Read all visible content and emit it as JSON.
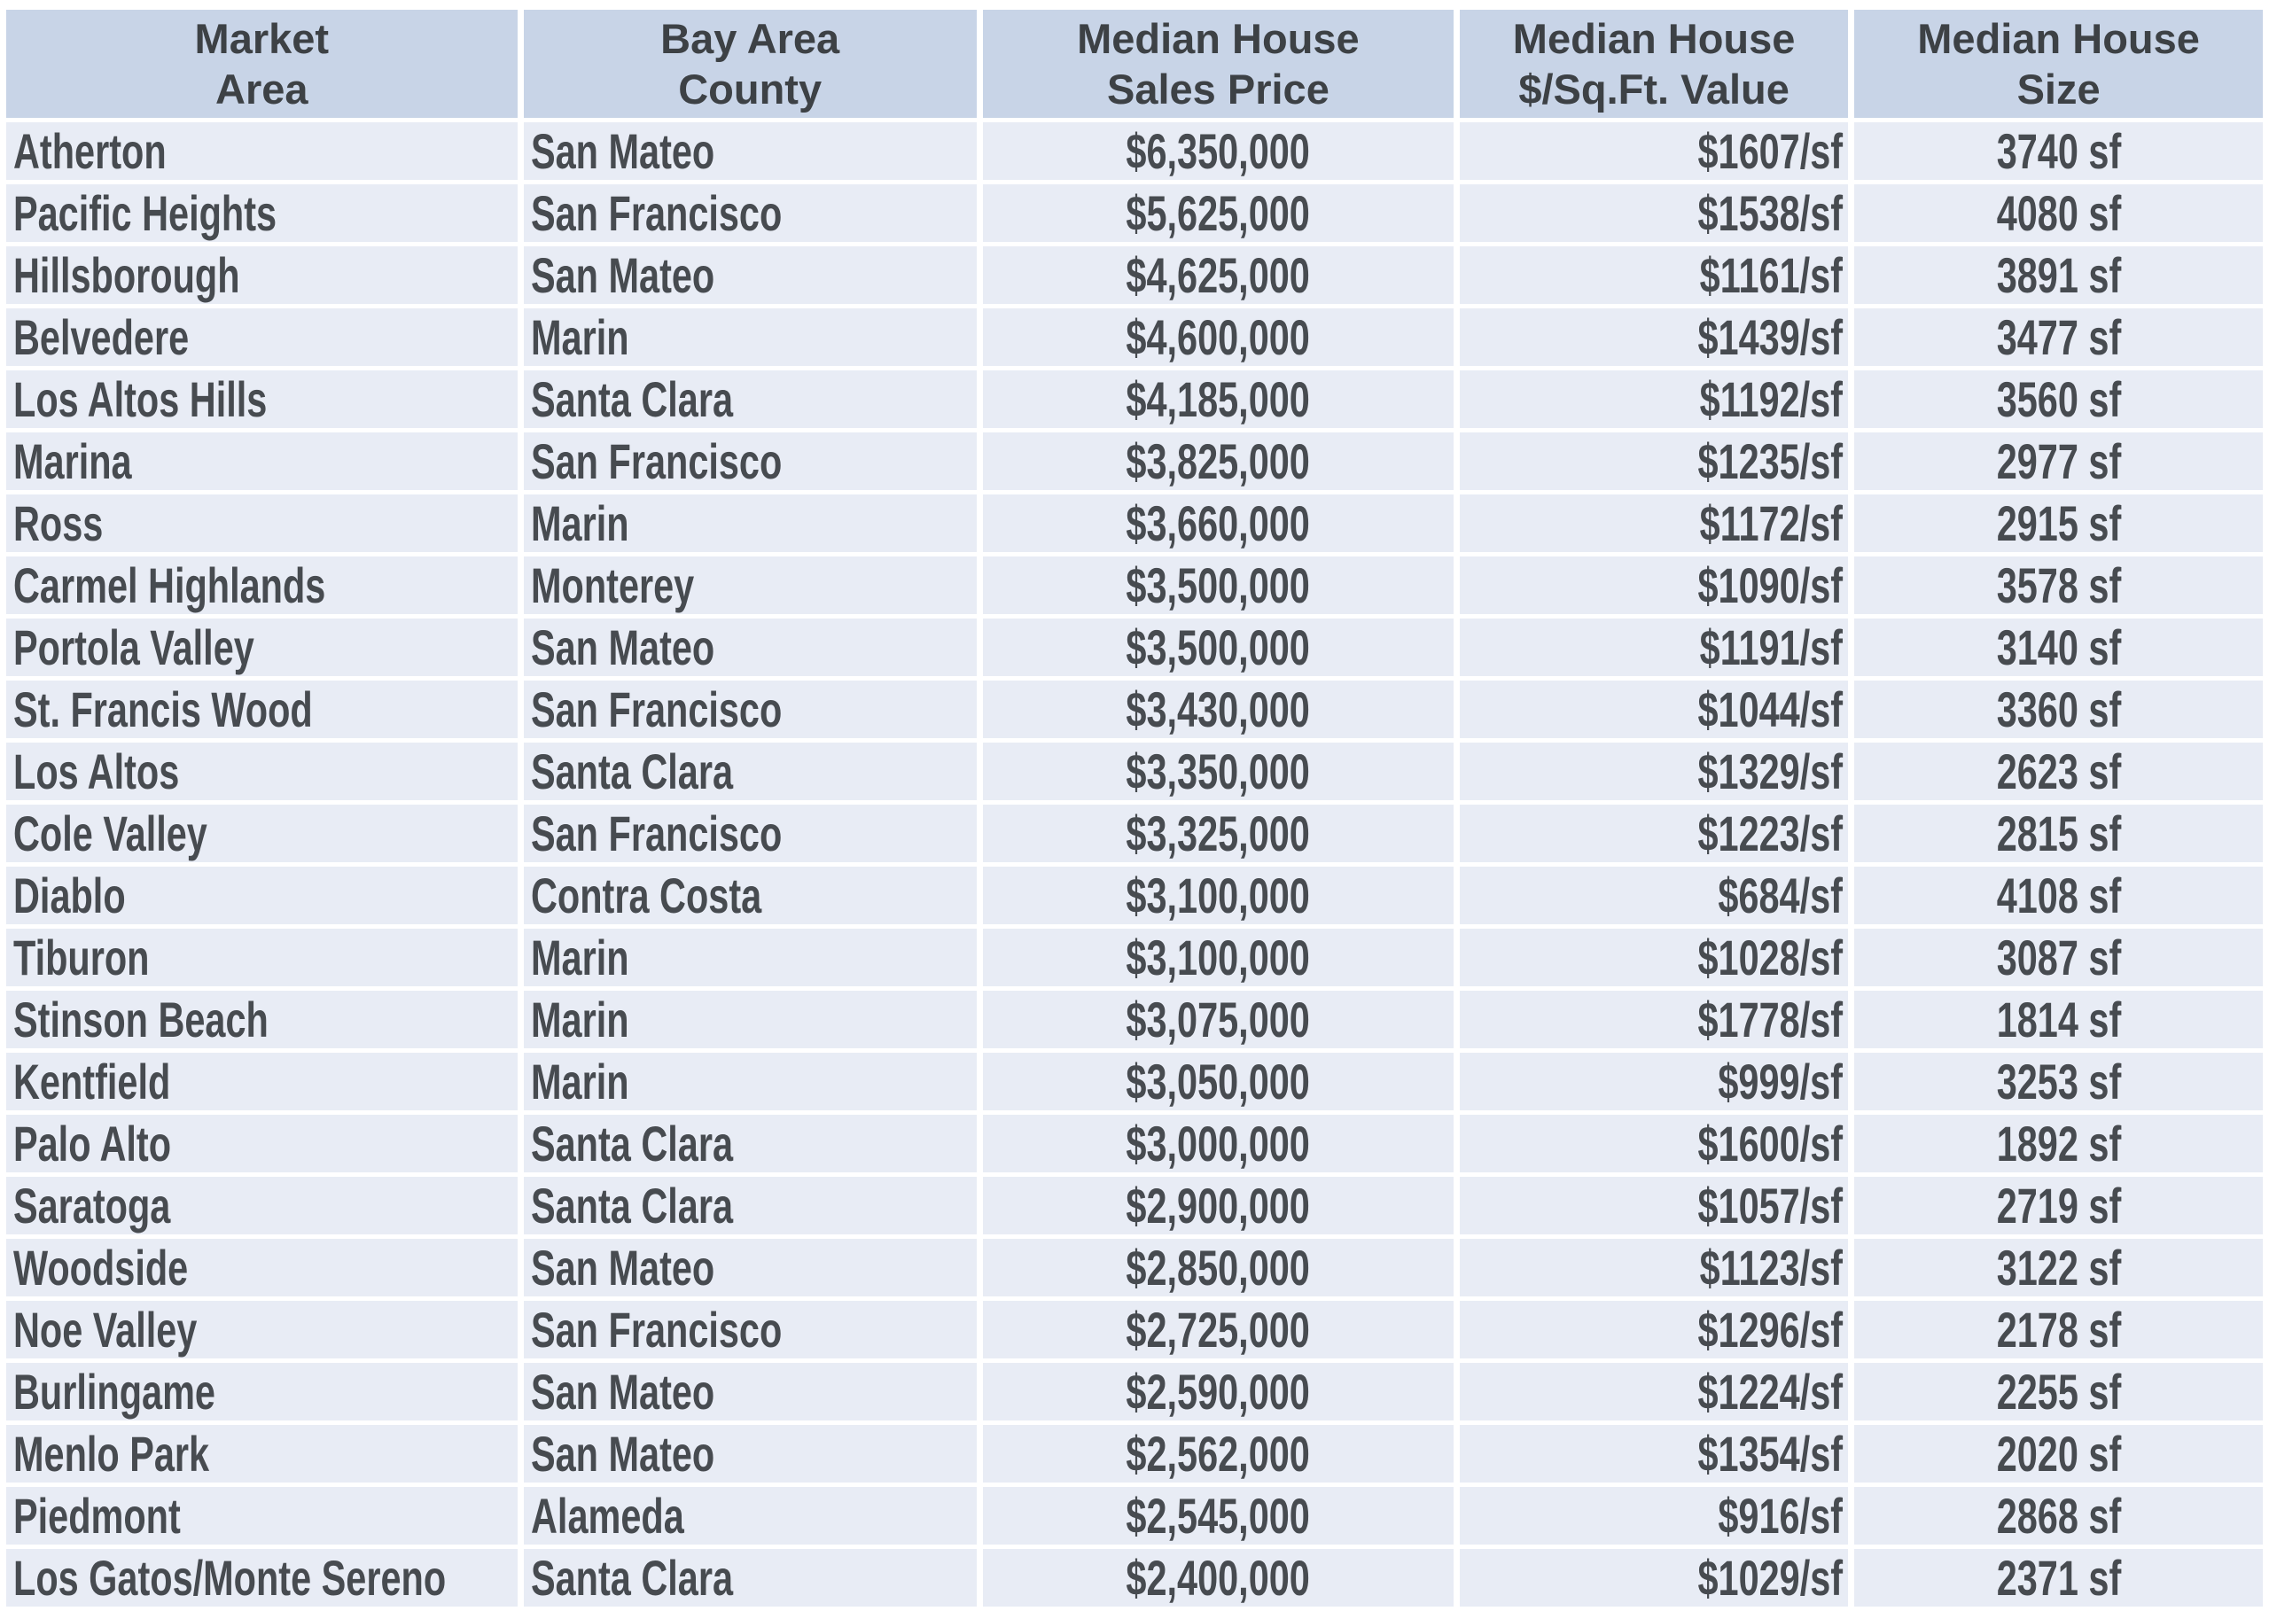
{
  "style": {
    "header_bg": "#c8d4e7",
    "row_bg": "#e8ecf5",
    "grid_color": "#ffffff",
    "header_text_color": "#3d4145",
    "body_text_color": "#474b50"
  },
  "chart_data": {
    "type": "table",
    "title": "",
    "legend_position": "none",
    "grid": "white separators between all cells",
    "columns": [
      {
        "id": "area",
        "line1": "Market",
        "line2": "Area",
        "align": "left"
      },
      {
        "id": "county",
        "line1": "Bay Area",
        "line2": "County",
        "align": "left"
      },
      {
        "id": "price",
        "line1": "Median House",
        "line2": "Sales Price",
        "align": "center"
      },
      {
        "id": "ppsf",
        "line1": "Median House",
        "line2": "$/Sq.Ft. Value",
        "align": "right"
      },
      {
        "id": "size",
        "line1": "Median House",
        "line2": "Size",
        "align": "center"
      }
    ],
    "rows": [
      {
        "area": "Atherton",
        "county": "San Mateo",
        "price": "$6,350,000",
        "ppsf": "$1607/sf",
        "size": "3740 sf"
      },
      {
        "area": "Pacific Heights",
        "county": "San Francisco",
        "price": "$5,625,000",
        "ppsf": "$1538/sf",
        "size": "4080 sf"
      },
      {
        "area": "Hillsborough",
        "county": "San Mateo",
        "price": "$4,625,000",
        "ppsf": "$1161/sf",
        "size": "3891 sf"
      },
      {
        "area": "Belvedere",
        "county": "Marin",
        "price": "$4,600,000",
        "ppsf": "$1439/sf",
        "size": "3477 sf"
      },
      {
        "area": "Los Altos Hills",
        "county": "Santa Clara",
        "price": "$4,185,000",
        "ppsf": "$1192/sf",
        "size": "3560 sf"
      },
      {
        "area": "Marina",
        "county": "San Francisco",
        "price": "$3,825,000",
        "ppsf": "$1235/sf",
        "size": "2977 sf"
      },
      {
        "area": "Ross",
        "county": "Marin",
        "price": "$3,660,000",
        "ppsf": "$1172/sf",
        "size": "2915 sf"
      },
      {
        "area": "Carmel Highlands",
        "county": "Monterey",
        "price": "$3,500,000",
        "ppsf": "$1090/sf",
        "size": "3578 sf"
      },
      {
        "area": "Portola Valley",
        "county": "San Mateo",
        "price": "$3,500,000",
        "ppsf": "$1191/sf",
        "size": "3140 sf"
      },
      {
        "area": "St. Francis Wood",
        "county": "San Francisco",
        "price": "$3,430,000",
        "ppsf": "$1044/sf",
        "size": "3360 sf"
      },
      {
        "area": "Los Altos",
        "county": "Santa Clara",
        "price": "$3,350,000",
        "ppsf": "$1329/sf",
        "size": "2623 sf"
      },
      {
        "area": "Cole Valley",
        "county": "San Francisco",
        "price": "$3,325,000",
        "ppsf": "$1223/sf",
        "size": "2815 sf"
      },
      {
        "area": "Diablo",
        "county": "Contra Costa",
        "price": "$3,100,000",
        "ppsf": "$684/sf",
        "size": "4108 sf"
      },
      {
        "area": "Tiburon",
        "county": "Marin",
        "price": "$3,100,000",
        "ppsf": "$1028/sf",
        "size": "3087 sf"
      },
      {
        "area": "Stinson Beach",
        "county": "Marin",
        "price": "$3,075,000",
        "ppsf": "$1778/sf",
        "size": "1814 sf"
      },
      {
        "area": "Kentfield",
        "county": "Marin",
        "price": "$3,050,000",
        "ppsf": "$999/sf",
        "size": "3253 sf"
      },
      {
        "area": "Palo Alto",
        "county": "Santa Clara",
        "price": "$3,000,000",
        "ppsf": "$1600/sf",
        "size": "1892 sf"
      },
      {
        "area": "Saratoga",
        "county": "Santa Clara",
        "price": "$2,900,000",
        "ppsf": "$1057/sf",
        "size": "2719 sf"
      },
      {
        "area": "Woodside",
        "county": "San Mateo",
        "price": "$2,850,000",
        "ppsf": "$1123/sf",
        "size": "3122 sf"
      },
      {
        "area": "Noe Valley",
        "county": "San Francisco",
        "price": "$2,725,000",
        "ppsf": "$1296/sf",
        "size": "2178 sf"
      },
      {
        "area": "Burlingame",
        "county": "San Mateo",
        "price": "$2,590,000",
        "ppsf": "$1224/sf",
        "size": "2255 sf"
      },
      {
        "area": "Menlo Park",
        "county": "San Mateo",
        "price": "$2,562,000",
        "ppsf": "$1354/sf",
        "size": "2020 sf"
      },
      {
        "area": "Piedmont",
        "county": "Alameda",
        "price": "$2,545,000",
        "ppsf": "$916/sf",
        "size": "2868 sf"
      },
      {
        "area": "Los Gatos/Monte Sereno",
        "county": "Santa Clara",
        "price": "$2,400,000",
        "ppsf": "$1029/sf",
        "size": "2371 sf"
      }
    ]
  }
}
